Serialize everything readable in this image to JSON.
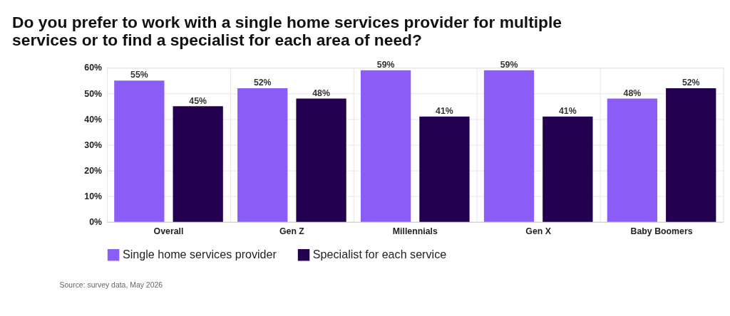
{
  "chart_data": {
    "type": "bar",
    "title": [
      "Do you prefer to work with a single home services provider for multiple",
      "services or to find a specialist for each area of need?"
    ],
    "categories": [
      "Overall",
      "Gen Z",
      "Millennials",
      "Gen X",
      "Baby Boomers"
    ],
    "series": [
      {
        "name": "Single home services provider",
        "color": "#8b5cf6",
        "values": [
          55,
          52,
          59,
          59,
          48
        ]
      },
      {
        "name": "Specialist for each service",
        "color": "#22004f",
        "values": [
          45,
          48,
          41,
          41,
          52
        ]
      }
    ],
    "ylim": [
      0,
      60
    ],
    "yticks": [
      {
        "value": 0,
        "label": "0%"
      },
      {
        "value": 10,
        "label": "10%"
      },
      {
        "value": 20,
        "label": "20%"
      },
      {
        "value": 30,
        "label": "30%"
      },
      {
        "value": 40,
        "label": "40%"
      },
      {
        "value": 50,
        "label": "50%"
      },
      {
        "value": 60,
        "label": "60%"
      }
    ],
    "value_labels": [
      [
        "55%",
        "52%",
        "59%",
        "59%",
        "48%"
      ],
      [
        "45%",
        "48%",
        "41%",
        "41%",
        "52%"
      ]
    ],
    "grid": true,
    "legend": "bottom",
    "annotations": [
      "Source: survey data, May 2026"
    ]
  }
}
